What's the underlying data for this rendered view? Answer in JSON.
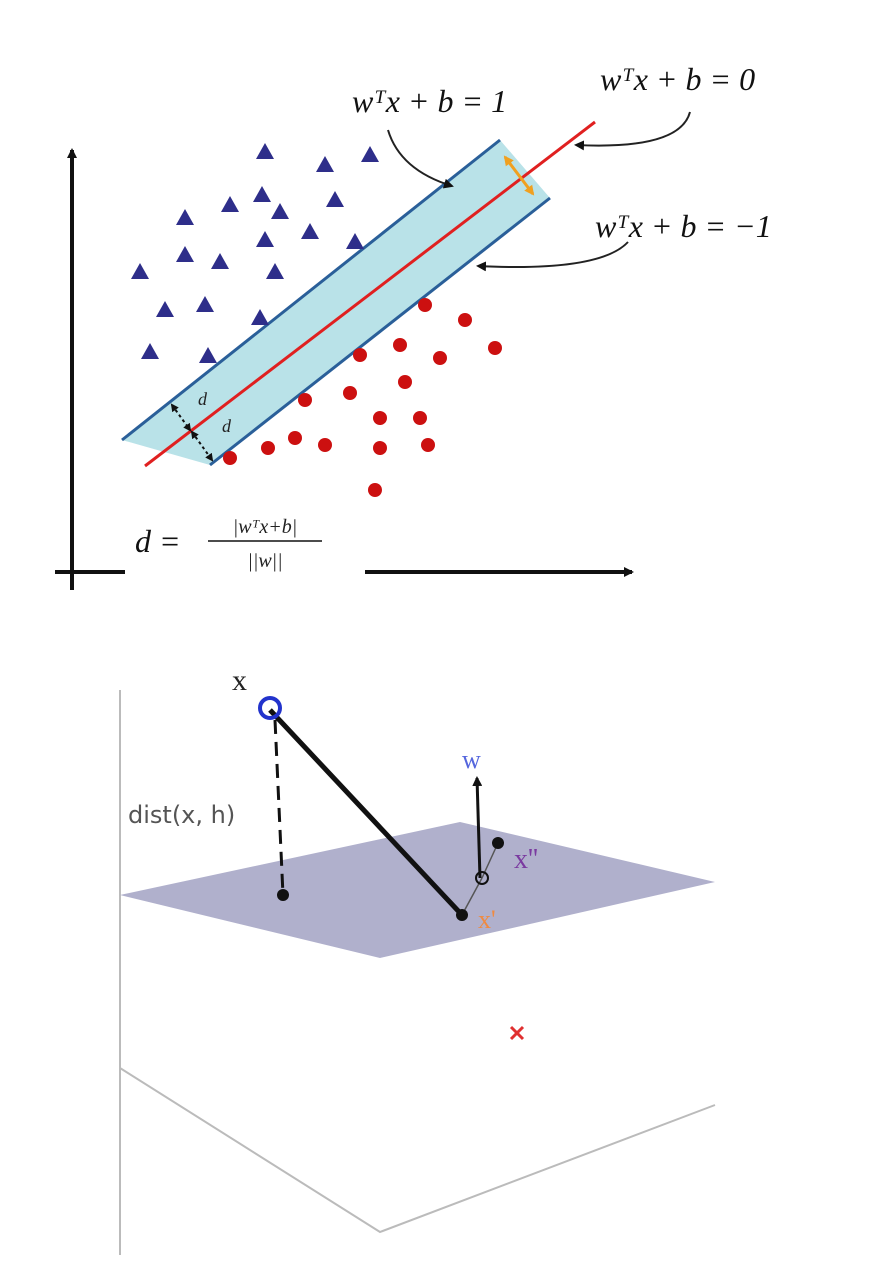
{
  "top_diagram": {
    "margin_label": "wᵀx + b = 1",
    "boundary_label": "wᵀx + b = 0",
    "negative_margin_label": "wᵀx + b = −1",
    "distance_labels": [
      "d",
      "d"
    ],
    "formula": {
      "lhs": "d =",
      "numerator": "|wᵀx+b|",
      "denominator": "||w||"
    }
  },
  "bottom_diagram": {
    "point_label": "x",
    "distance_label": "dist(x, h)",
    "normal_label": "w",
    "point_double_prime_label": "x''",
    "point_prime_label": "x'"
  }
}
